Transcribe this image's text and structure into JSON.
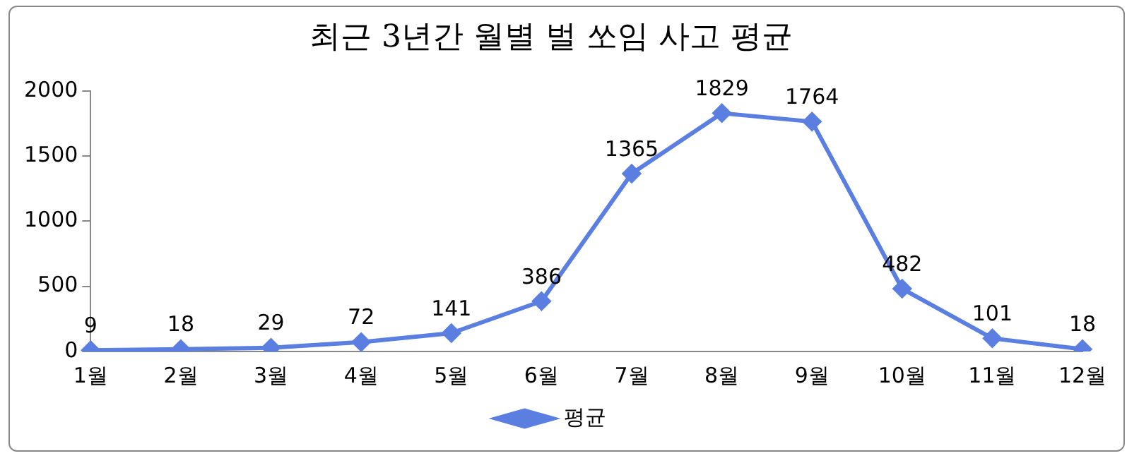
{
  "chart_data": {
    "type": "line",
    "title": "최근 3년간 월별 벌 쏘임 사고 평균",
    "categories": [
      "1월",
      "2월",
      "3월",
      "4월",
      "5월",
      "6월",
      "7월",
      "8월",
      "9월",
      "10월",
      "11월",
      "12월"
    ],
    "series": [
      {
        "name": "평균",
        "color": "#5b7fe0",
        "values": [
          9,
          18,
          29,
          72,
          141,
          386,
          1365,
          1829,
          1764,
          482,
          101,
          18
        ]
      }
    ],
    "ylim": [
      0,
      2000
    ],
    "yticks": [
      0,
      500,
      1000,
      1500,
      2000
    ],
    "grid": false,
    "legend": "bottom",
    "marker": "diamond",
    "line_style": "solid",
    "data_labels": true
  }
}
